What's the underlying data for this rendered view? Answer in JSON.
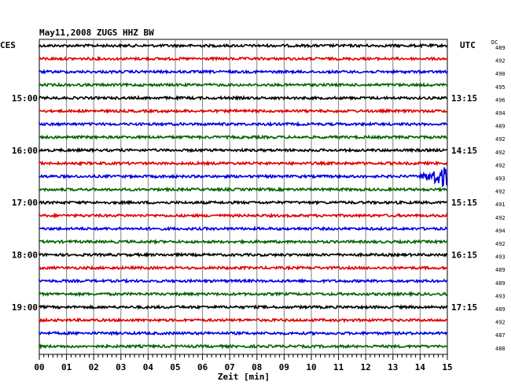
{
  "header": {
    "title": "May11,2008  ZUGS HHZ BW",
    "left_tz": "CES",
    "right_tz": "UTC",
    "dc_label": "DC"
  },
  "chart_data": {
    "type": "line",
    "title": "May11,2008  ZUGS HHZ BW",
    "xlabel": "Zeit [min]",
    "xlim": [
      0,
      15
    ],
    "x_ticks": [
      "00",
      "01",
      "02",
      "03",
      "04",
      "05",
      "06",
      "07",
      "08",
      "09",
      "10",
      "11",
      "12",
      "13",
      "14",
      "15"
    ],
    "row_colors": [
      "#000000",
      "#e00000",
      "#0000e0",
      "#006400"
    ],
    "rows_per_hour": 4,
    "minutes_per_row": 15,
    "num_rows": 24,
    "left_time_labels": [
      {
        "row": 4,
        "text": "15:00"
      },
      {
        "row": 8,
        "text": "16:00"
      },
      {
        "row": 12,
        "text": "17:00"
      },
      {
        "row": 16,
        "text": "18:00"
      },
      {
        "row": 20,
        "text": "19:00"
      }
    ],
    "right_time_labels": [
      {
        "row": 4,
        "text": "13:15"
      },
      {
        "row": 8,
        "text": "14:15"
      },
      {
        "row": 12,
        "text": "15:15"
      },
      {
        "row": 16,
        "text": "16:15"
      },
      {
        "row": 20,
        "text": "17:15"
      }
    ],
    "dc_values": [
      489,
      492,
      490,
      495,
      496,
      494,
      489,
      492,
      492,
      492,
      493,
      492,
      491,
      492,
      494,
      492,
      493,
      489,
      489,
      493,
      489,
      492,
      487,
      488
    ],
    "event": {
      "row": 10,
      "start_minute": 13.9,
      "peak_minute": 14.9,
      "description": ""
    }
  }
}
